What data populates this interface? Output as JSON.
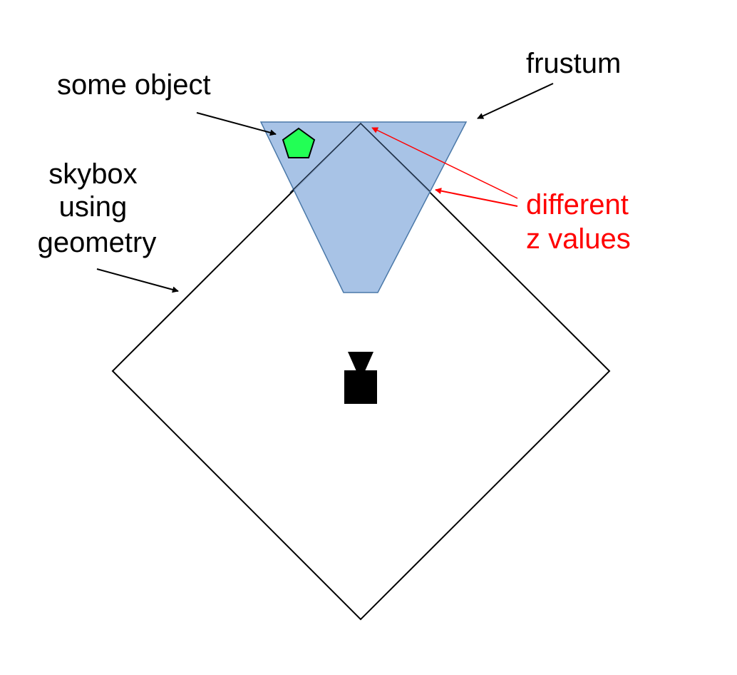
{
  "labels": {
    "frustum": "frustum",
    "some_object": "some object",
    "skybox": [
      "skybox",
      "using",
      "geometry"
    ],
    "z_values": [
      "different",
      "z values"
    ]
  },
  "colors": {
    "frustum_fill": "#9cbbe3",
    "frustum_stroke": "#4a78a8",
    "object_fill": "#22ff55",
    "highlight": "#ff0000",
    "ink": "#000000"
  },
  "icons": {
    "camera": "camera-icon",
    "object": "pentagon-icon"
  }
}
